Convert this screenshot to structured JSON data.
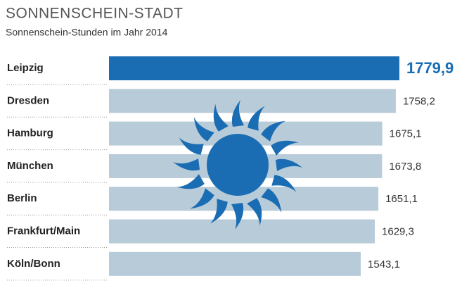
{
  "chart_data": {
    "type": "barh",
    "title": "SONNENSCHEIN-STADT",
    "subtitle": "Sonnenschein-Stunden im Jahr 2014",
    "categories": [
      "Leipzig",
      "Dresden",
      "Hamburg",
      "München",
      "Berlin",
      "Frankfurt/Main",
      "Köln/Bonn"
    ],
    "values": [
      1779.9,
      1758.2,
      1675.1,
      1673.8,
      1651.1,
      1629.3,
      1543.1
    ],
    "value_labels": [
      "1779,9",
      "1758,2",
      "1675,1",
      "1673,8",
      "1651,1",
      "1629,3",
      "1543,1"
    ],
    "colors": [
      "#1a6db3",
      "#b8cbd9",
      "#b8cbd9",
      "#b8cbd9",
      "#b8cbd9",
      "#b8cbd9",
      "#b8cbd9"
    ],
    "xlim": [
      0,
      1780
    ]
  }
}
